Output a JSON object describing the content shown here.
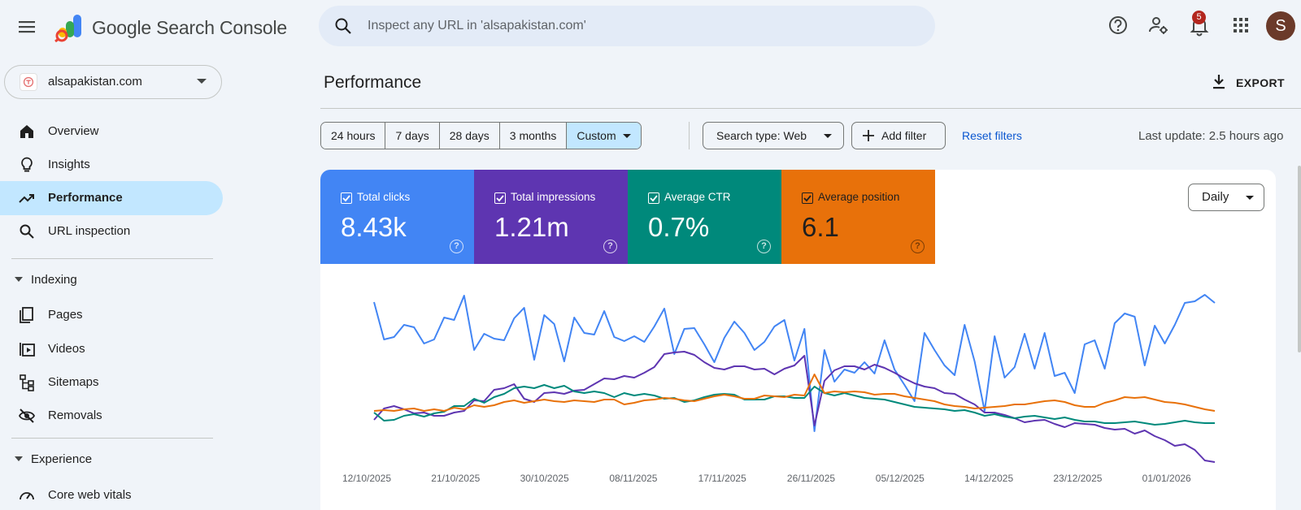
{
  "header": {
    "brand": "Google Search Console",
    "search_placeholder": "Inspect any URL in 'alsapakistan.com'",
    "notifications_count": "5",
    "avatar_initial": "S"
  },
  "sidebar": {
    "property": "alsapakistan.com",
    "items": [
      {
        "label": "Overview",
        "icon": "home-icon"
      },
      {
        "label": "Insights",
        "icon": "lightbulb-icon"
      },
      {
        "label": "Performance",
        "icon": "trending-up-icon",
        "active": true
      },
      {
        "label": "URL inspection",
        "icon": "search-icon"
      }
    ],
    "indexing": {
      "label": "Indexing",
      "items": [
        {
          "label": "Pages",
          "icon": "pages-icon"
        },
        {
          "label": "Videos",
          "icon": "video-icon"
        },
        {
          "label": "Sitemaps",
          "icon": "sitemap-icon"
        },
        {
          "label": "Removals",
          "icon": "eye-off-icon"
        }
      ]
    },
    "experience": {
      "label": "Experience",
      "items": [
        {
          "label": "Core web vitals",
          "icon": "gauge-icon"
        }
      ]
    }
  },
  "main": {
    "title": "Performance",
    "export_label": "EXPORT",
    "date_ranges": [
      "24 hours",
      "7 days",
      "28 days",
      "3 months",
      "Custom"
    ],
    "selected_range": "Custom",
    "search_type": "Search type: Web",
    "add_filter": "Add filter",
    "reset_filters": "Reset filters",
    "last_update": "Last update: 2.5 hours ago",
    "granularity": "Daily"
  },
  "metrics": [
    {
      "label": "Total clicks",
      "value": "8.43k",
      "color": "#4285f4"
    },
    {
      "label": "Total impressions",
      "value": "1.21m",
      "color": "#5e35b1"
    },
    {
      "label": "Average CTR",
      "value": "0.7%",
      "color": "#00897b"
    },
    {
      "label": "Average position",
      "value": "6.1",
      "color": "#e8710a"
    }
  ],
  "chart_data": {
    "type": "line",
    "x_tick_labels": [
      "12/10/2025",
      "21/10/2025",
      "30/10/2025",
      "08/11/2025",
      "17/11/2025",
      "26/11/2025",
      "05/12/2025",
      "14/12/2025",
      "23/12/2025",
      "01/01/2026"
    ],
    "series": [
      {
        "name": "Total clicks",
        "color": "#4285f4",
        "values": [
          77,
          31,
          34,
          49,
          46,
          26,
          31,
          58,
          55,
          85,
          18,
          38,
          32,
          30,
          57,
          70,
          6,
          61,
          50,
          4,
          58,
          39,
          37,
          66,
          34,
          29,
          35,
          28,
          47,
          69,
          13,
          44,
          45,
          25,
          3,
          33,
          53,
          39,
          18,
          28,
          47,
          55,
          5,
          44,
          -82,
          18,
          -21,
          -6,
          -10,
          3,
          -11,
          30,
          -6,
          -25,
          -45,
          39,
          18,
          -1,
          -13,
          49,
          4,
          -57,
          35,
          -16,
          -3,
          38,
          -5,
          39,
          -14,
          -10,
          -35,
          25,
          30,
          -5,
          51,
          63,
          59,
          -1,
          48,
          26,
          49,
          76,
          78,
          86,
          76
        ]
      },
      {
        "name": "Total impressions",
        "color": "#5e35b1",
        "values": [
          -68,
          -54,
          -51,
          -55,
          -60,
          -59,
          -63,
          -63,
          -59,
          -57,
          -44,
          -45,
          -31,
          -29,
          -24,
          -42,
          -46,
          -35,
          -34,
          -36,
          -32,
          -31,
          -24,
          -17,
          -18,
          -14,
          -16,
          -10,
          -3,
          13,
          15,
          16,
          12,
          3,
          -4,
          -6,
          -2,
          -2,
          -6,
          -5,
          -12,
          -5,
          -1,
          11,
          -75,
          -20,
          -7,
          -2,
          -2,
          -6,
          0,
          -4,
          -10,
          -17,
          -23,
          -27,
          -29,
          -35,
          -36,
          -43,
          -49,
          -59,
          -59,
          -62,
          -66,
          -71,
          -69,
          -68,
          -73,
          -77,
          -72,
          -73,
          -74,
          -78,
          -80,
          -79,
          -85,
          -81,
          -88,
          -93,
          -100,
          -98,
          -105,
          -118,
          -120
        ]
      },
      {
        "name": "Average CTR",
        "color": "#00897b",
        "values": [
          -59,
          -69,
          -68,
          -63,
          -61,
          -64,
          -60,
          -58,
          -51,
          -51,
          -42,
          -47,
          -40,
          -36,
          -29,
          -27,
          -29,
          -25,
          -29,
          -26,
          -33,
          -35,
          -33,
          -35,
          -40,
          -35,
          -38,
          -36,
          -38,
          -42,
          -41,
          -46,
          -44,
          -40,
          -37,
          -36,
          -37,
          -43,
          -43,
          -43,
          -39,
          -39,
          -41,
          -41,
          -27,
          -35,
          -38,
          -35,
          -38,
          -41,
          -42,
          -43,
          -46,
          -49,
          -52,
          -53,
          -54,
          -55,
          -57,
          -56,
          -59,
          -63,
          -61,
          -64,
          -66,
          -64,
          -63,
          -65,
          -67,
          -65,
          -68,
          -70,
          -70,
          -72,
          -72,
          -71,
          -70,
          -72,
          -74,
          -73,
          -71,
          -69,
          -71,
          -72,
          -72
        ]
      },
      {
        "name": "Average position",
        "color": "#e8710a",
        "values": [
          -57,
          -56,
          -57,
          -55,
          -54,
          -57,
          -55,
          -57,
          -53,
          -55,
          -50,
          -52,
          -50,
          -46,
          -44,
          -47,
          -45,
          -43,
          -45,
          -46,
          -44,
          -45,
          -46,
          -43,
          -43,
          -49,
          -47,
          -44,
          -43,
          -41,
          -42,
          -44,
          -45,
          -42,
          -39,
          -37,
          -39,
          -42,
          -42,
          -38,
          -39,
          -40,
          -37,
          -38,
          -12,
          -35,
          -33,
          -34,
          -33,
          -34,
          -37,
          -36,
          -36,
          -39,
          -41,
          -43,
          -45,
          -49,
          -51,
          -52,
          -54,
          -53,
          -52,
          -51,
          -49,
          -49,
          -47,
          -45,
          -44,
          -46,
          -50,
          -52,
          -52,
          -47,
          -44,
          -40,
          -41,
          -40,
          -43,
          -46,
          -47,
          -49,
          -52,
          -55,
          -57
        ]
      }
    ]
  }
}
